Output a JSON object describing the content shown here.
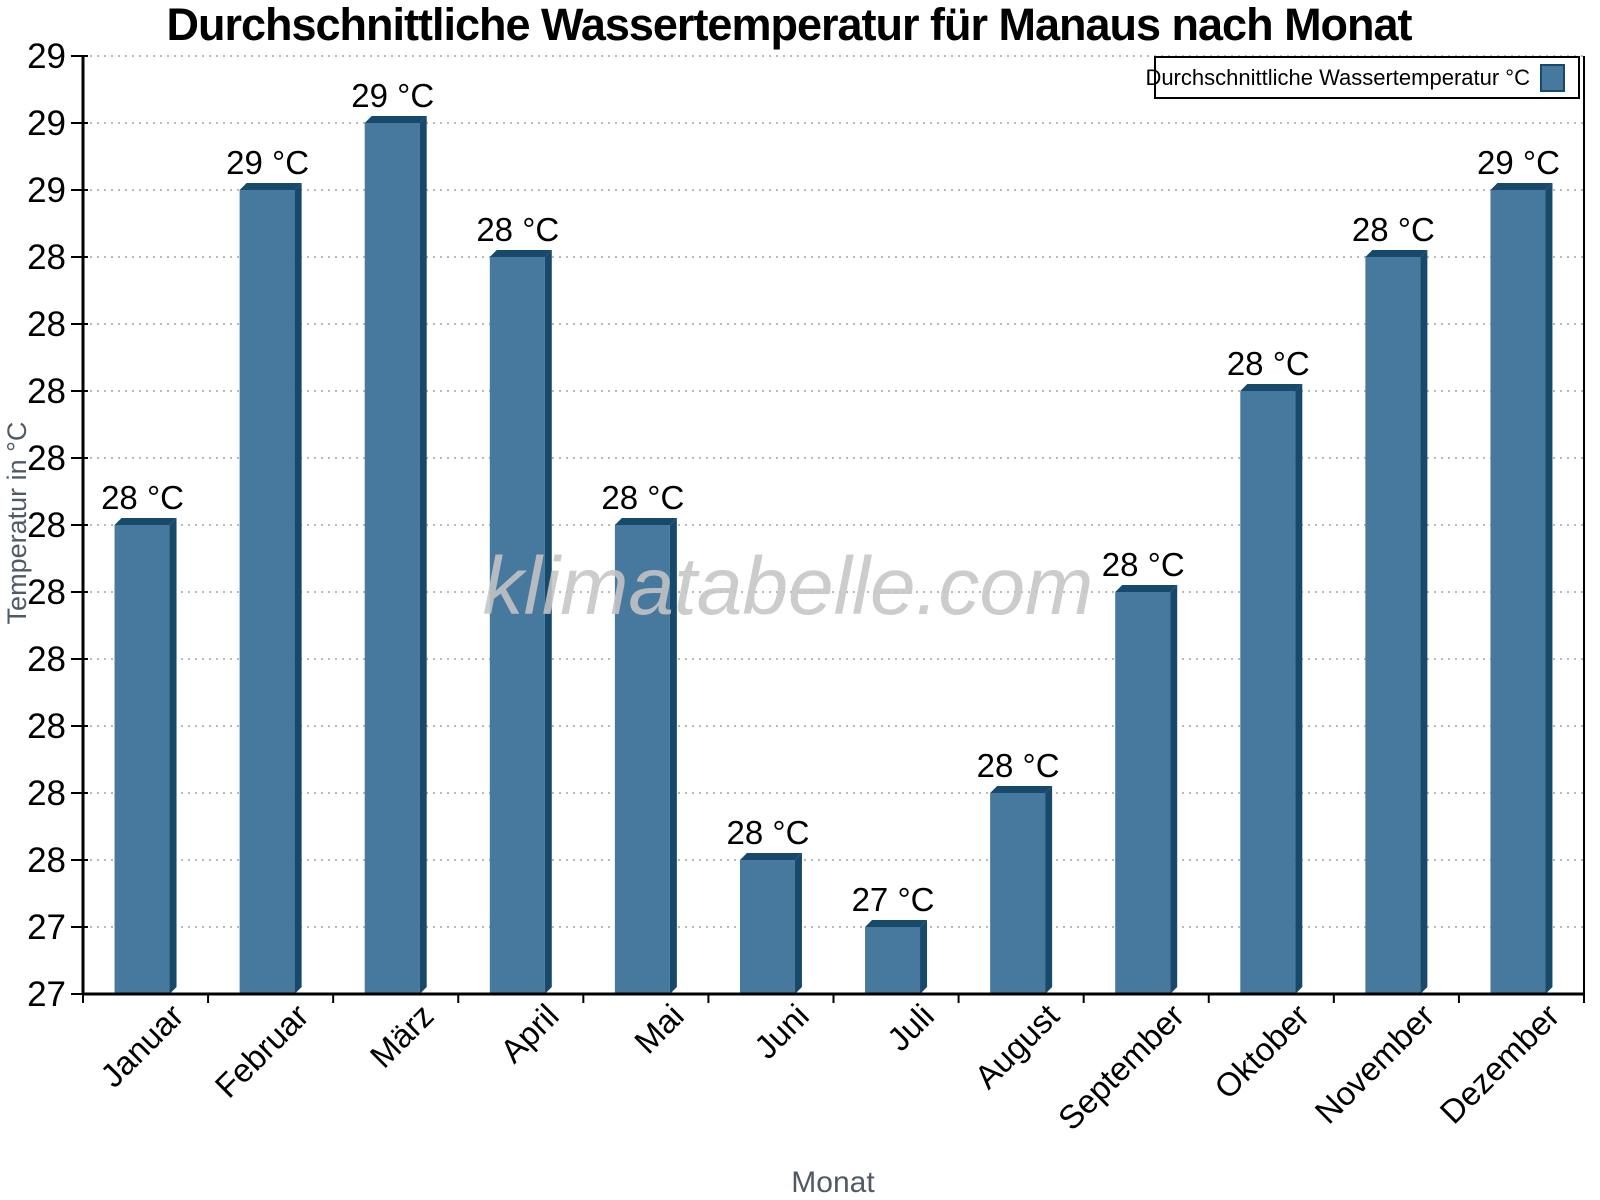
{
  "title": "Durchschnittliche Wassertemperatur für Manaus nach Monat",
  "legend": {
    "label": "Durchschnittliche Wassertemperatur °C"
  },
  "watermark": "klimatabelle.com",
  "axes": {
    "y_title": "Temperatur in °C",
    "x_title": "Monat"
  },
  "chart_data": {
    "type": "bar",
    "title": "Durchschnittliche Wassertemperatur für Manaus nach Monat",
    "xlabel": "Monat",
    "ylabel": "Temperatur in °C",
    "categories": [
      "Januar",
      "Februar",
      "März",
      "April",
      "Mai",
      "Juni",
      "Juli",
      "August",
      "September",
      "Oktober",
      "November",
      "Dezember"
    ],
    "series": [
      {
        "name": "Durchschnittliche Wassertemperatur °C",
        "values": [
          28.0,
          28.5,
          28.6,
          28.4,
          28.0,
          27.5,
          27.4,
          27.6,
          27.9,
          28.2,
          28.4,
          28.5
        ]
      }
    ],
    "bar_labels": [
      "28 °C",
      "29 °C",
      "29 °C",
      "28 °C",
      "28 °C",
      "28 °C",
      "27 °C",
      "28 °C",
      "28 °C",
      "28 °C",
      "28 °C",
      "29 °C"
    ],
    "ylim": [
      27.3,
      28.7
    ],
    "y_tick_step": 0.1,
    "y_tick_labels_bottom_to_top": [
      "27",
      "27",
      "28",
      "28",
      "28",
      "28",
      "28",
      "28",
      "28",
      "28",
      "28",
      "28",
      "29",
      "29",
      "29"
    ],
    "grid": "horizontal-dotted",
    "legend_position": "top-right"
  },
  "colors": {
    "bar_fill": "#47799F",
    "bar_edge": "#17496B",
    "grid": "#b9b9b9",
    "axis": "#000000",
    "axis_title_gray": "#4f5a66",
    "watermark": "#c5c5c5"
  }
}
